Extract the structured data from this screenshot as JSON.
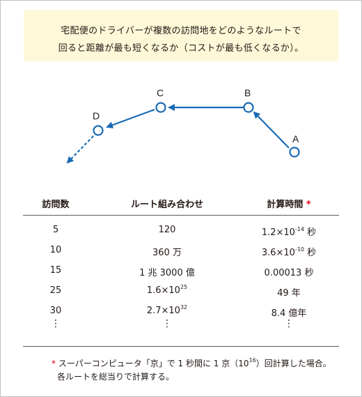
{
  "intro": {
    "line1": "宅配便のドライバーが複数の訪問地をどのようなルートで",
    "line2": "回ると距離が最も短くなるか（コストが最も低くなるか）。"
  },
  "route": {
    "points": [
      "A",
      "B",
      "C",
      "D"
    ],
    "color": "#1a6bb5"
  },
  "table": {
    "headers": {
      "visits": "訪問数",
      "combos": "ルート組み合わせ",
      "time": "計算時間",
      "asterisk": "*"
    },
    "rows": [
      {
        "visits": "5",
        "combo_text": "120",
        "combo_exp": "",
        "time_text": "1.2×10",
        "time_exp": "-14",
        "time_unit": " 秒"
      },
      {
        "visits": "10",
        "combo_text": "360 万",
        "combo_exp": "",
        "time_text": "3.6×10",
        "time_exp": "-10",
        "time_unit": " 秒"
      },
      {
        "visits": "15",
        "combo_text": "1 兆 3000 億",
        "combo_exp": "",
        "time_text": "0.00013 秒",
        "time_exp": "",
        "time_unit": ""
      },
      {
        "visits": "25",
        "combo_text": "1.6×10",
        "combo_exp": "25",
        "time_text": "49 年",
        "time_exp": "",
        "time_unit": ""
      },
      {
        "visits": "30",
        "combo_text": "2.7×10",
        "combo_exp": "32",
        "time_text": "8.4 億年",
        "time_exp": "",
        "time_unit": ""
      }
    ],
    "ellipsis": "⋮"
  },
  "note": {
    "asterisk": "*",
    "line1_a": " スーパーコンピュータ「京」で 1 秒間に 1 京（10",
    "line1_exp": "16",
    "line1_b": "）回計算した場合。",
    "line2": "各ルートを総当りで計算する。"
  }
}
